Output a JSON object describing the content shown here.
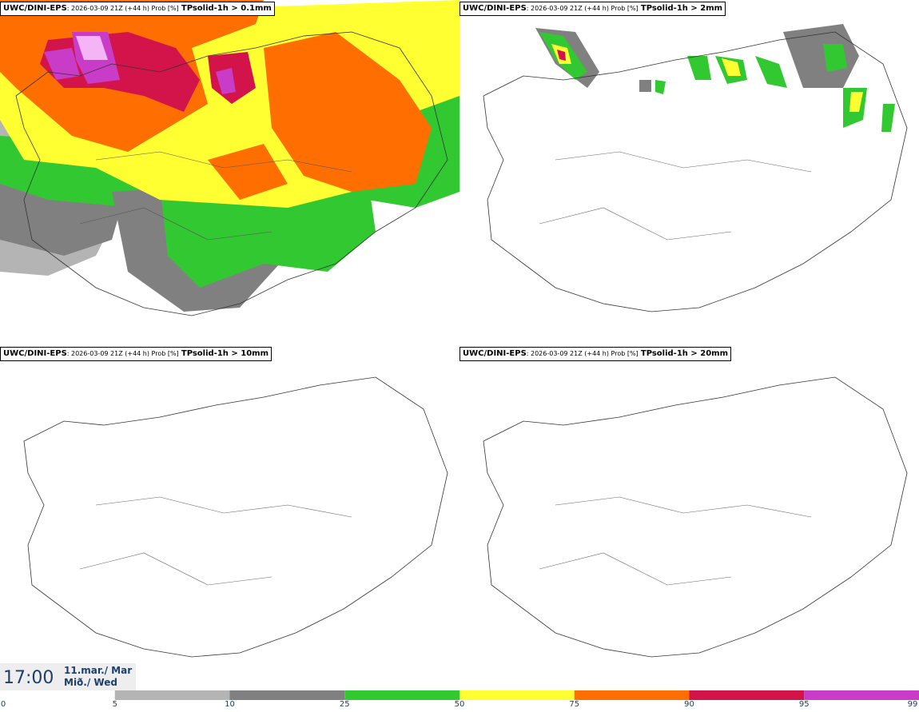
{
  "panels": [
    {
      "model": "UWC/DINI-EPS",
      "meta": ": 2026-03-09 21Z (+44 h) Prob [%]",
      "param": "TPsolid-1h > 0.1mm"
    },
    {
      "model": "UWC/DINI-EPS",
      "meta": ": 2026-03-09 21Z (+44 h) Prob [%]",
      "param": "TPsolid-1h > 2mm"
    },
    {
      "model": "UWC/DINI-EPS",
      "meta": ": 2026-03-09 21Z (+44 h) Prob [%]",
      "param": "TPsolid-1h > 10mm"
    },
    {
      "model": "UWC/DINI-EPS",
      "meta": ": 2026-03-09 21Z (+44 h) Prob [%]",
      "param": "TPsolid-1h > 20mm"
    }
  ],
  "time": {
    "clock": "17:00",
    "date_line1": "11.mar./ Mar",
    "date_line2": "Mið./ Wed"
  },
  "colorbar": {
    "ticks": [
      "0",
      "5",
      "10",
      "25",
      "50",
      "75",
      "90",
      "95",
      "99"
    ],
    "colors": [
      "#ffffff",
      "#b4b4b4",
      "#808080",
      "#32c832",
      "#ffff32",
      "#ff6e00",
      "#d2144b",
      "#c83cc8",
      "#f5b4f5"
    ]
  }
}
